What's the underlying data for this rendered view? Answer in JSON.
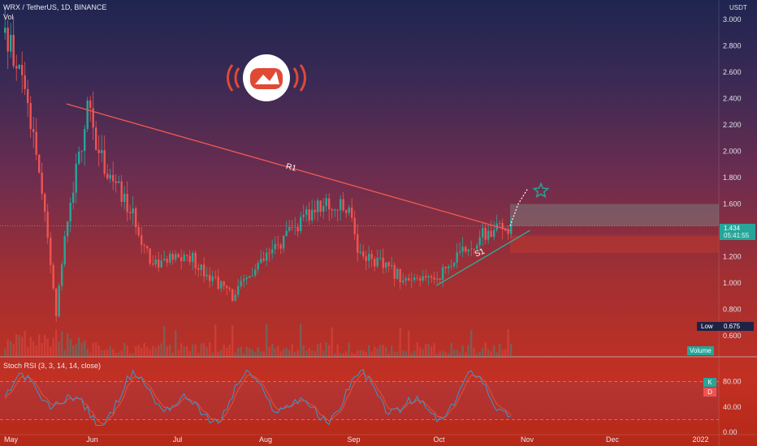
{
  "header": {
    "symbol_line": "WRX / TetherUS, 1D, BINANCE",
    "vol_label": "Vol",
    "currency": "USDT"
  },
  "price_axis": {
    "ticks": [
      "3.000",
      "2.800",
      "2.600",
      "2.400",
      "2.200",
      "2.000",
      "1.800",
      "1.600",
      "1.400",
      "1.200",
      "1.000",
      "0.800",
      "0.600"
    ]
  },
  "time_axis": {
    "ticks": [
      "May",
      "Jun",
      "Jul",
      "Aug",
      "Sep",
      "Oct",
      "Nov",
      "Dec",
      "2022"
    ]
  },
  "current_price": {
    "value": "1.434",
    "countdown": "05:41:55"
  },
  "low_tag": {
    "label": "Low",
    "value": "0.675"
  },
  "volume_tag": "Volume",
  "rsi": {
    "title": "Stoch RSI (3, 3, 14, 14, close)",
    "ticks": [
      "80.00",
      "40.00",
      "0.00"
    ],
    "k_label": "K",
    "d_label": "D"
  },
  "annotations": {
    "resistance": "R1",
    "support": "S1"
  },
  "colors": {
    "bull": "#26a69a",
    "bear": "#ef5350",
    "trendline_r": "#f05a4f",
    "trendline_s": "#2bb0a0",
    "k_line": "#2f9bd4",
    "d_line": "#e0503c",
    "star": "#2a9d8f"
  },
  "chart_data": {
    "type": "candlestick",
    "title": "WRX / TetherUS, 1D, BINANCE",
    "ylabel": "USDT",
    "ylim": [
      0.44,
      3.1
    ],
    "x_range": [
      "2021-05-01",
      "2021-12-31"
    ],
    "key_levels": {
      "current": 1.434,
      "low": 0.675
    },
    "price_path": [
      {
        "date": "2021-05-01",
        "close": 2.9
      },
      {
        "date": "2021-05-08",
        "close": 2.45
      },
      {
        "date": "2021-05-12",
        "close": 2.0
      },
      {
        "date": "2021-05-19",
        "close": 0.78
      },
      {
        "date": "2021-05-22",
        "close": 1.4
      },
      {
        "date": "2021-05-30",
        "close": 2.3
      },
      {
        "date": "2021-06-05",
        "close": 1.9
      },
      {
        "date": "2021-06-15",
        "close": 1.5
      },
      {
        "date": "2021-06-22",
        "close": 1.15
      },
      {
        "date": "2021-07-05",
        "close": 1.2
      },
      {
        "date": "2021-07-20",
        "close": 0.9
      },
      {
        "date": "2021-07-28",
        "close": 1.1
      },
      {
        "date": "2021-08-08",
        "close": 1.35
      },
      {
        "date": "2021-08-20",
        "close": 1.6
      },
      {
        "date": "2021-08-31",
        "close": 1.55
      },
      {
        "date": "2021-09-02",
        "close": 1.25
      },
      {
        "date": "2021-09-21",
        "close": 1.0
      },
      {
        "date": "2021-09-30",
        "close": 1.05
      },
      {
        "date": "2021-10-15",
        "close": 1.35
      },
      {
        "date": "2021-10-26",
        "close": 1.434
      }
    ],
    "trendlines": [
      {
        "name": "R1",
        "from": {
          "date": "2021-05-23",
          "price": 2.36
        },
        "to": {
          "date": "2021-10-26",
          "price": 1.4
        }
      },
      {
        "name": "S1",
        "from": {
          "date": "2021-09-30",
          "price": 0.98
        },
        "to": {
          "date": "2021-11-02",
          "price": 1.4
        }
      }
    ],
    "zones": [
      {
        "kind": "target",
        "from": 1.434,
        "to": 1.6
      },
      {
        "kind": "stop",
        "from": 1.23,
        "to": 1.36
      }
    ],
    "rsi_range": [
      0,
      100
    ],
    "rsi_levels": [
      80,
      20
    ]
  }
}
